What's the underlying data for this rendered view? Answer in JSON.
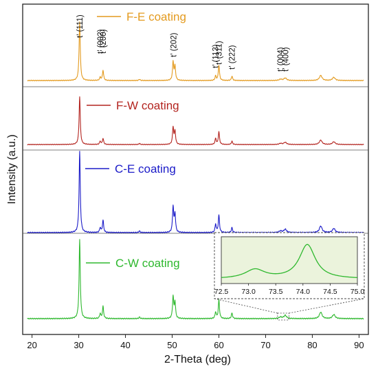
{
  "chart_data": {
    "type": "line",
    "xlabel": "2-Theta (deg)",
    "ylabel": "Intensity (a.u.)",
    "xlim": [
      18,
      92
    ],
    "xticks": [
      20,
      30,
      40,
      50,
      60,
      70,
      80,
      90
    ],
    "grid": false,
    "legend": "inline labels next to each pattern",
    "colors": {
      "F-E coating": "#e39a1e",
      "F-W coating": "#b3241f",
      "C-E coating": "#1b1bc8",
      "C-W coating": "#2eb82e"
    },
    "series": [
      {
        "name": "F-E coating",
        "peaks": [
          {
            "x": 30.2,
            "h": 0.93
          },
          {
            "x": 34.6,
            "h": 0.05
          },
          {
            "x": 35.2,
            "h": 0.16
          },
          {
            "x": 43.0,
            "h": 0.02
          },
          {
            "x": 50.2,
            "h": 0.29
          },
          {
            "x": 50.6,
            "h": 0.22
          },
          {
            "x": 59.3,
            "h": 0.07
          },
          {
            "x": 60.0,
            "h": 0.24
          },
          {
            "x": 62.8,
            "h": 0.07
          },
          {
            "x": 73.2,
            "h": 0.02
          },
          {
            "x": 74.2,
            "h": 0.04
          },
          {
            "x": 81.8,
            "h": 0.08
          },
          {
            "x": 84.6,
            "h": 0.05
          }
        ]
      },
      {
        "name": "F-W coating",
        "peaks": [
          {
            "x": 30.2,
            "h": 0.87
          },
          {
            "x": 34.6,
            "h": 0.06
          },
          {
            "x": 35.2,
            "h": 0.11
          },
          {
            "x": 43.0,
            "h": 0.02
          },
          {
            "x": 50.2,
            "h": 0.31
          },
          {
            "x": 50.6,
            "h": 0.24
          },
          {
            "x": 59.3,
            "h": 0.11
          },
          {
            "x": 60.0,
            "h": 0.23
          },
          {
            "x": 62.8,
            "h": 0.06
          },
          {
            "x": 73.2,
            "h": 0.02
          },
          {
            "x": 74.2,
            "h": 0.04
          },
          {
            "x": 81.8,
            "h": 0.08
          },
          {
            "x": 84.6,
            "h": 0.05
          }
        ]
      },
      {
        "name": "C-E coating",
        "peaks": [
          {
            "x": 30.2,
            "h": 0.98
          },
          {
            "x": 34.6,
            "h": 0.06
          },
          {
            "x": 35.2,
            "h": 0.15
          },
          {
            "x": 43.0,
            "h": 0.02
          },
          {
            "x": 50.2,
            "h": 0.31
          },
          {
            "x": 50.6,
            "h": 0.22
          },
          {
            "x": 59.3,
            "h": 0.1
          },
          {
            "x": 60.0,
            "h": 0.21
          },
          {
            "x": 62.8,
            "h": 0.06
          },
          {
            "x": 73.2,
            "h": 0.02
          },
          {
            "x": 74.2,
            "h": 0.04
          },
          {
            "x": 81.8,
            "h": 0.08
          },
          {
            "x": 84.6,
            "h": 0.05
          }
        ]
      },
      {
        "name": "C-W coating",
        "peaks": [
          {
            "x": 30.2,
            "h": 0.98
          },
          {
            "x": 34.6,
            "h": 0.06
          },
          {
            "x": 35.2,
            "h": 0.15
          },
          {
            "x": 43.0,
            "h": 0.02
          },
          {
            "x": 50.2,
            "h": 0.27
          },
          {
            "x": 50.6,
            "h": 0.2
          },
          {
            "x": 59.3,
            "h": 0.08
          },
          {
            "x": 60.0,
            "h": 0.23
          },
          {
            "x": 62.8,
            "h": 0.07
          },
          {
            "x": 73.2,
            "h": 0.02
          },
          {
            "x": 74.2,
            "h": 0.04
          },
          {
            "x": 81.8,
            "h": 0.08
          },
          {
            "x": 84.6,
            "h": 0.05
          }
        ]
      }
    ],
    "annotations": [
      {
        "text": "t' (111)",
        "x": 30.2
      },
      {
        "text": "t' (002)",
        "x": 34.6
      },
      {
        "text": "t' (200)",
        "x": 35.2
      },
      {
        "text": "t' (202)",
        "x": 50.3
      },
      {
        "text": "t' (113)",
        "x": 59.3
      },
      {
        "text": "t' (311)",
        "x": 60.0
      },
      {
        "text": "t' (222)",
        "x": 62.8
      },
      {
        "text": "t' (004)",
        "x": 73.2
      },
      {
        "text": "t' (400)",
        "x": 74.3
      }
    ],
    "inset": {
      "series": "C-W coating",
      "xlim": [
        72.5,
        75.0
      ],
      "xticks": [
        "72.5",
        "73.0",
        "73.5",
        "74.0",
        "74.5",
        "75.0"
      ],
      "background": "#ebf3dc",
      "peaks": [
        {
          "x": 73.12,
          "h": 0.2
        },
        {
          "x": 74.08,
          "h": 0.75
        }
      ],
      "source_range": [
        72.5,
        75.0
      ]
    }
  }
}
